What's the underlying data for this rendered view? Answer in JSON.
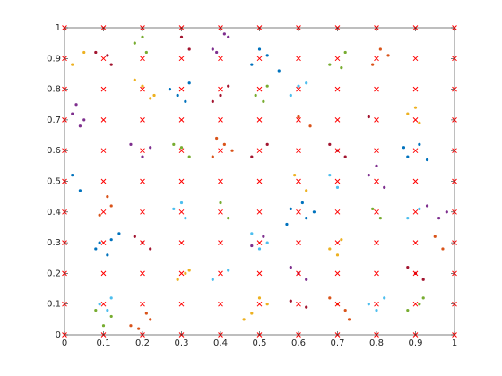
{
  "chart_data": {
    "type": "scatter",
    "xlim": [
      0,
      1
    ],
    "ylim": [
      0,
      1
    ],
    "xticks": [
      0,
      0.1,
      0.2,
      0.3,
      0.4,
      0.5,
      0.6,
      0.7,
      0.8,
      0.9,
      1
    ],
    "yticks": [
      0,
      0.1,
      0.2,
      0.3,
      0.4,
      0.5,
      0.6,
      0.7,
      0.8,
      0.9,
      1
    ],
    "series": [
      {
        "color": "#0072BD",
        "marker": "dot",
        "x": [
          0.58,
          0.62,
          0.61,
          0.57,
          0.64,
          0.12,
          0.08,
          0.11,
          0.14,
          0.09,
          0.91,
          0.88,
          0.93,
          0.87,
          0.29,
          0.32,
          0.31,
          0.27,
          0.52,
          0.48,
          0.5,
          0.55,
          0.02,
          0.04
        ],
        "values": [
          0.41,
          0.38,
          0.43,
          0.36,
          0.4,
          0.31,
          0.28,
          0.26,
          0.33,
          0.3,
          0.62,
          0.58,
          0.57,
          0.61,
          0.78,
          0.82,
          0.76,
          0.8,
          0.91,
          0.88,
          0.93,
          0.86,
          0.52,
          0.47
        ]
      },
      {
        "color": "#D95319",
        "marker": "dot",
        "x": [
          0.19,
          0.22,
          0.17,
          0.21,
          0.41,
          0.38,
          0.43,
          0.39,
          0.72,
          0.68,
          0.7,
          0.73,
          0.83,
          0.79,
          0.81,
          0.12,
          0.09,
          0.11,
          0.97,
          0.95,
          0.6,
          0.63
        ],
        "values": [
          0.02,
          0.05,
          0.03,
          0.07,
          0.62,
          0.58,
          0.6,
          0.64,
          0.08,
          0.12,
          0.1,
          0.05,
          0.91,
          0.88,
          0.93,
          0.42,
          0.39,
          0.45,
          0.28,
          0.32,
          0.71,
          0.68
        ]
      },
      {
        "color": "#EDB120",
        "marker": "dot",
        "x": [
          0.2,
          0.23,
          0.18,
          0.22,
          0.48,
          0.52,
          0.5,
          0.46,
          0.88,
          0.91,
          0.9,
          0.32,
          0.29,
          0.31,
          0.68,
          0.71,
          0.7,
          0.02,
          0.05,
          0.62,
          0.59
        ],
        "values": [
          0.81,
          0.78,
          0.83,
          0.77,
          0.07,
          0.1,
          0.12,
          0.05,
          0.72,
          0.69,
          0.74,
          0.21,
          0.18,
          0.2,
          0.28,
          0.31,
          0.26,
          0.88,
          0.92,
          0.47,
          0.52
        ]
      },
      {
        "color": "#7E2F8E",
        "marker": "dot",
        "x": [
          0.02,
          0.04,
          0.03,
          0.05,
          0.42,
          0.38,
          0.41,
          0.39,
          0.78,
          0.82,
          0.8,
          0.62,
          0.58,
          0.6,
          0.93,
          0.96,
          0.98,
          0.17,
          0.2,
          0.22,
          0.51,
          0.48
        ],
        "values": [
          0.72,
          0.68,
          0.75,
          0.7,
          0.97,
          0.93,
          0.98,
          0.92,
          0.52,
          0.48,
          0.55,
          0.18,
          0.22,
          0.2,
          0.42,
          0.38,
          0.4,
          0.62,
          0.58,
          0.61,
          0.32,
          0.29
        ]
      },
      {
        "color": "#77AC30",
        "marker": "dot",
        "x": [
          0.21,
          0.18,
          0.2,
          0.68,
          0.72,
          0.71,
          0.49,
          0.52,
          0.51,
          0.32,
          0.28,
          0.3,
          0.88,
          0.92,
          0.91,
          0.1,
          0.12,
          0.08,
          0.81,
          0.79,
          0.4,
          0.42
        ],
        "values": [
          0.92,
          0.95,
          0.97,
          0.88,
          0.92,
          0.87,
          0.78,
          0.81,
          0.76,
          0.58,
          0.62,
          0.61,
          0.08,
          0.12,
          0.1,
          0.03,
          0.06,
          0.08,
          0.38,
          0.41,
          0.43,
          0.38
        ]
      },
      {
        "color": "#4DBEEE",
        "marker": "dot",
        "x": [
          0.12,
          0.09,
          0.11,
          0.5,
          0.52,
          0.48,
          0.28,
          0.31,
          0.3,
          0.82,
          0.78,
          0.8,
          0.62,
          0.58,
          0.6,
          0.88,
          0.91,
          0.38,
          0.42,
          0.68,
          0.7
        ],
        "values": [
          0.12,
          0.1,
          0.08,
          0.28,
          0.3,
          0.33,
          0.41,
          0.38,
          0.43,
          0.12,
          0.1,
          0.08,
          0.82,
          0.78,
          0.81,
          0.38,
          0.41,
          0.18,
          0.21,
          0.52,
          0.48
        ]
      },
      {
        "color": "#A2142F",
        "marker": "dot",
        "x": [
          0.12,
          0.08,
          0.11,
          0.4,
          0.42,
          0.38,
          0.68,
          0.72,
          0.7,
          0.22,
          0.18,
          0.2,
          0.92,
          0.88,
          0.9,
          0.52,
          0.48,
          0.3,
          0.32,
          0.62,
          0.58,
          0.78
        ],
        "values": [
          0.88,
          0.92,
          0.91,
          0.78,
          0.81,
          0.76,
          0.62,
          0.58,
          0.6,
          0.28,
          0.32,
          0.3,
          0.18,
          0.22,
          0.2,
          0.62,
          0.58,
          0.97,
          0.93,
          0.09,
          0.11,
          0.71
        ]
      },
      {
        "color": "#FF0000",
        "marker": "x",
        "x": [
          0,
          0,
          0,
          0,
          0,
          0,
          0,
          0,
          0,
          0,
          0,
          0.1,
          0.1,
          0.1,
          0.1,
          0.1,
          0.1,
          0.1,
          0.1,
          0.1,
          0.1,
          0.1,
          0.2,
          0.2,
          0.2,
          0.2,
          0.2,
          0.2,
          0.2,
          0.2,
          0.2,
          0.2,
          0.2,
          0.3,
          0.3,
          0.3,
          0.3,
          0.3,
          0.3,
          0.3,
          0.3,
          0.3,
          0.3,
          0.3,
          0.4,
          0.4,
          0.4,
          0.4,
          0.4,
          0.4,
          0.4,
          0.4,
          0.4,
          0.4,
          0.4,
          0.5,
          0.5,
          0.5,
          0.5,
          0.5,
          0.5,
          0.5,
          0.5,
          0.5,
          0.5,
          0.5,
          0.6,
          0.6,
          0.6,
          0.6,
          0.6,
          0.6,
          0.6,
          0.6,
          0.6,
          0.6,
          0.6,
          0.7,
          0.7,
          0.7,
          0.7,
          0.7,
          0.7,
          0.7,
          0.7,
          0.7,
          0.7,
          0.7,
          0.8,
          0.8,
          0.8,
          0.8,
          0.8,
          0.8,
          0.8,
          0.8,
          0.8,
          0.8,
          0.8,
          0.9,
          0.9,
          0.9,
          0.9,
          0.9,
          0.9,
          0.9,
          0.9,
          0.9,
          0.9,
          0.9,
          1,
          1,
          1,
          1,
          1,
          1,
          1,
          1,
          1,
          1,
          1
        ],
        "values": [
          0,
          0.1,
          0.2,
          0.3,
          0.4,
          0.5,
          0.6,
          0.7,
          0.8,
          0.9,
          1,
          0,
          0.1,
          0.2,
          0.3,
          0.4,
          0.5,
          0.6,
          0.7,
          0.8,
          0.9,
          1,
          0,
          0.1,
          0.2,
          0.3,
          0.4,
          0.5,
          0.6,
          0.7,
          0.8,
          0.9,
          1,
          0,
          0.1,
          0.2,
          0.3,
          0.4,
          0.5,
          0.6,
          0.7,
          0.8,
          0.9,
          1,
          0,
          0.1,
          0.2,
          0.3,
          0.4,
          0.5,
          0.6,
          0.7,
          0.8,
          0.9,
          1,
          0,
          0.1,
          0.2,
          0.3,
          0.4,
          0.5,
          0.6,
          0.7,
          0.8,
          0.9,
          1,
          0,
          0.1,
          0.2,
          0.3,
          0.4,
          0.5,
          0.6,
          0.7,
          0.8,
          0.9,
          1,
          0,
          0.1,
          0.2,
          0.3,
          0.4,
          0.5,
          0.6,
          0.7,
          0.8,
          0.9,
          1,
          0,
          0.1,
          0.2,
          0.3,
          0.4,
          0.5,
          0.6,
          0.7,
          0.8,
          0.9,
          1,
          0,
          0.1,
          0.2,
          0.3,
          0.4,
          0.5,
          0.6,
          0.7,
          0.8,
          0.9,
          1,
          0,
          0.1,
          0.2,
          0.3,
          0.4,
          0.5,
          0.6,
          0.7,
          0.8,
          0.9,
          1
        ]
      }
    ]
  }
}
